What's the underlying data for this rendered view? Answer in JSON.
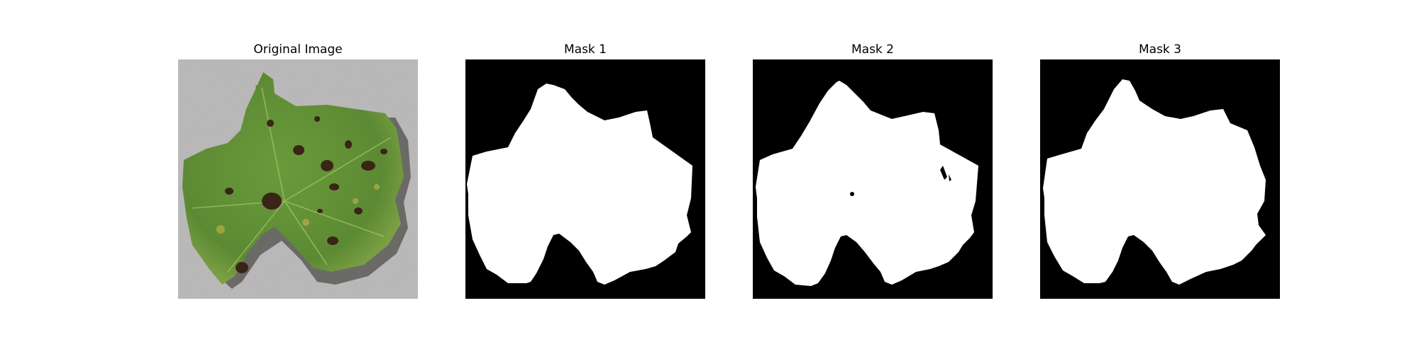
{
  "panels": [
    {
      "title": "Original Image",
      "kind": "photo",
      "content": "grape-leaf-with-dark-lesions",
      "colors": {
        "background": "#b9b7b7",
        "leaf": "#5c8a34",
        "leaf_light": "#86a84a",
        "lesion": "#3a2416"
      }
    },
    {
      "title": "Mask 1",
      "kind": "mask",
      "colors": {
        "background": "#000000",
        "foreground": "#ffffff"
      }
    },
    {
      "title": "Mask 2",
      "kind": "mask",
      "colors": {
        "background": "#000000",
        "foreground": "#ffffff"
      }
    },
    {
      "title": "Mask 3",
      "kind": "mask",
      "colors": {
        "background": "#000000",
        "foreground": "#ffffff"
      }
    }
  ]
}
